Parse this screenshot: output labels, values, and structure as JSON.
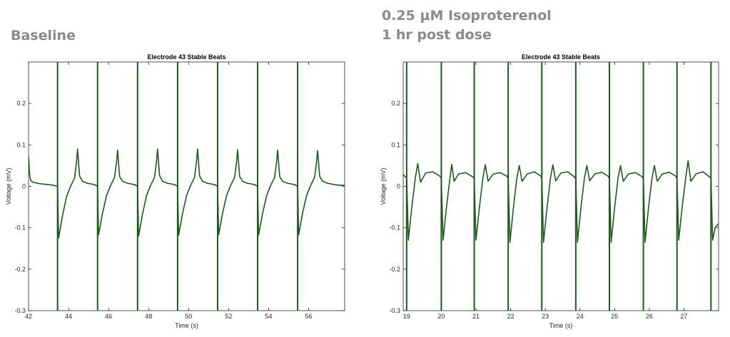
{
  "headings": {
    "left": "Baseline",
    "right_line1": "0.25 µM Isoproterenol",
    "right_line2": "1 hr post dose",
    "color": "#8a8a8a"
  },
  "chart_data": [
    {
      "type": "line",
      "title": "Electrode 43 Stable Beats",
      "xlabel": "Time (s)",
      "ylabel": "Voltage (mV)",
      "xlim": [
        42,
        57.8
      ],
      "ylim": [
        -0.3,
        0.3
      ],
      "xticks": [
        42,
        44,
        46,
        48,
        50,
        52,
        54,
        56
      ],
      "yticks": [
        -0.3,
        -0.2,
        -0.1,
        0,
        0.1,
        0.2
      ],
      "grid": false,
      "line_color": "#1a5c1a",
      "beat_marker_color": "#1a5c1a",
      "beat_markers": [
        43.45,
        45.45,
        47.45,
        49.45,
        51.45,
        53.45,
        55.45
      ],
      "series": [
        {
          "x": [
            42.0,
            42.05,
            42.1,
            42.2,
            42.4,
            42.6,
            42.8,
            43.0,
            43.2,
            43.45,
            43.5,
            43.7,
            43.9,
            44.1,
            44.3,
            44.4,
            44.45,
            44.55,
            44.7,
            44.9,
            45.1,
            45.3,
            45.45,
            45.5,
            45.7,
            45.9,
            46.1,
            46.3,
            46.4,
            46.45,
            46.55,
            46.7,
            46.9,
            47.1,
            47.3,
            47.45,
            47.5,
            47.7,
            47.9,
            48.1,
            48.3,
            48.4,
            48.45,
            48.55,
            48.7,
            48.9,
            49.1,
            49.3,
            49.45,
            49.5,
            49.7,
            49.9,
            50.1,
            50.3,
            50.4,
            50.45,
            50.55,
            50.7,
            50.9,
            51.1,
            51.3,
            51.45,
            51.5,
            51.7,
            51.9,
            52.1,
            52.3,
            52.4,
            52.45,
            52.55,
            52.7,
            52.9,
            53.1,
            53.3,
            53.45,
            53.5,
            53.7,
            53.9,
            54.1,
            54.3,
            54.4,
            54.45,
            54.55,
            54.7,
            54.9,
            55.1,
            55.3,
            55.45,
            55.5,
            55.7,
            55.9,
            56.1,
            56.3,
            56.4,
            56.45,
            56.55,
            56.7,
            56.9,
            57.1,
            57.3,
            57.5,
            57.8
          ],
          "y": [
            0.072,
            0.03,
            0.015,
            0.01,
            0.008,
            0.006,
            0.005,
            0.004,
            0.003,
            0.0,
            -0.125,
            -0.07,
            -0.025,
            0.0,
            0.02,
            0.06,
            0.09,
            0.025,
            0.012,
            0.008,
            0.006,
            0.004,
            0.0,
            -0.117,
            -0.065,
            -0.022,
            0.002,
            0.022,
            0.06,
            0.087,
            0.024,
            0.012,
            0.008,
            0.006,
            0.004,
            0.0,
            -0.12,
            -0.066,
            -0.022,
            0.002,
            0.022,
            0.062,
            0.09,
            0.026,
            0.012,
            0.008,
            0.006,
            0.004,
            0.0,
            -0.118,
            -0.065,
            -0.022,
            0.002,
            0.022,
            0.062,
            0.09,
            0.025,
            0.012,
            0.008,
            0.006,
            0.004,
            0.0,
            -0.117,
            -0.064,
            -0.022,
            0.002,
            0.022,
            0.06,
            0.088,
            0.024,
            0.012,
            0.008,
            0.006,
            0.004,
            0.0,
            -0.118,
            -0.065,
            -0.022,
            0.002,
            0.022,
            0.06,
            0.087,
            0.024,
            0.012,
            0.008,
            0.006,
            0.004,
            0.0,
            -0.117,
            -0.064,
            -0.022,
            0.002,
            0.022,
            0.06,
            0.086,
            0.024,
            0.012,
            0.008,
            0.006,
            0.004,
            0.003,
            0.002
          ]
        }
      ]
    },
    {
      "type": "line",
      "title": "Electrode 43 Stable Beats",
      "xlabel": "Time (s)",
      "ylabel": "Voltage (mV)",
      "xlim": [
        18.9,
        28.0
      ],
      "ylim": [
        -0.3,
        0.3
      ],
      "xticks": [
        19,
        20,
        21,
        22,
        23,
        24,
        25,
        26,
        27
      ],
      "yticks": [
        -0.3,
        -0.2,
        -0.1,
        0,
        0.1,
        0.2
      ],
      "grid": false,
      "line_color": "#1a5c1a",
      "beat_marker_color": "#1a5c1a",
      "beat_markers": [
        19.0,
        20.0,
        20.95,
        21.93,
        22.9,
        23.88,
        24.85,
        25.83,
        26.8,
        27.78
      ],
      "series": [
        {
          "x": [
            18.9,
            19.0,
            19.05,
            19.15,
            19.25,
            19.32,
            19.4,
            19.55,
            19.75,
            19.95,
            20.0,
            20.05,
            20.15,
            20.25,
            20.3,
            20.37,
            20.5,
            20.7,
            20.92,
            20.95,
            21.0,
            21.1,
            21.2,
            21.27,
            21.35,
            21.5,
            21.7,
            21.9,
            21.93,
            21.98,
            22.08,
            22.18,
            22.25,
            22.33,
            22.48,
            22.68,
            22.87,
            22.9,
            22.95,
            23.05,
            23.15,
            23.22,
            23.3,
            23.45,
            23.65,
            23.85,
            23.88,
            23.93,
            24.03,
            24.13,
            24.2,
            24.28,
            24.43,
            24.63,
            24.82,
            24.85,
            24.9,
            25.0,
            25.1,
            25.17,
            25.25,
            25.4,
            25.6,
            25.8,
            25.83,
            25.88,
            25.98,
            26.08,
            26.15,
            26.23,
            26.38,
            26.58,
            26.77,
            26.8,
            26.85,
            26.95,
            27.05,
            27.12,
            27.2,
            27.35,
            27.55,
            27.75,
            27.78,
            27.83,
            27.9,
            28.0
          ],
          "y": [
            0.028,
            0.02,
            -0.13,
            -0.05,
            0.02,
            0.055,
            0.01,
            0.032,
            0.035,
            0.025,
            0.02,
            -0.13,
            -0.05,
            0.02,
            0.053,
            0.012,
            0.03,
            0.033,
            0.022,
            0.018,
            -0.13,
            -0.05,
            0.02,
            0.052,
            0.012,
            0.03,
            0.033,
            0.024,
            0.018,
            -0.135,
            -0.052,
            0.02,
            0.05,
            0.012,
            0.03,
            0.035,
            0.025,
            0.018,
            -0.135,
            -0.052,
            0.02,
            0.052,
            0.013,
            0.032,
            0.035,
            0.022,
            0.018,
            -0.135,
            -0.05,
            0.02,
            0.05,
            0.013,
            0.03,
            0.034,
            0.024,
            0.018,
            -0.135,
            -0.052,
            0.02,
            0.05,
            0.012,
            0.03,
            0.033,
            0.023,
            0.018,
            -0.135,
            -0.05,
            0.02,
            0.05,
            0.012,
            0.03,
            0.034,
            0.024,
            0.018,
            -0.13,
            -0.05,
            0.02,
            0.062,
            0.012,
            0.03,
            0.035,
            0.022,
            0.02,
            -0.13,
            -0.1,
            -0.09
          ]
        }
      ]
    }
  ]
}
